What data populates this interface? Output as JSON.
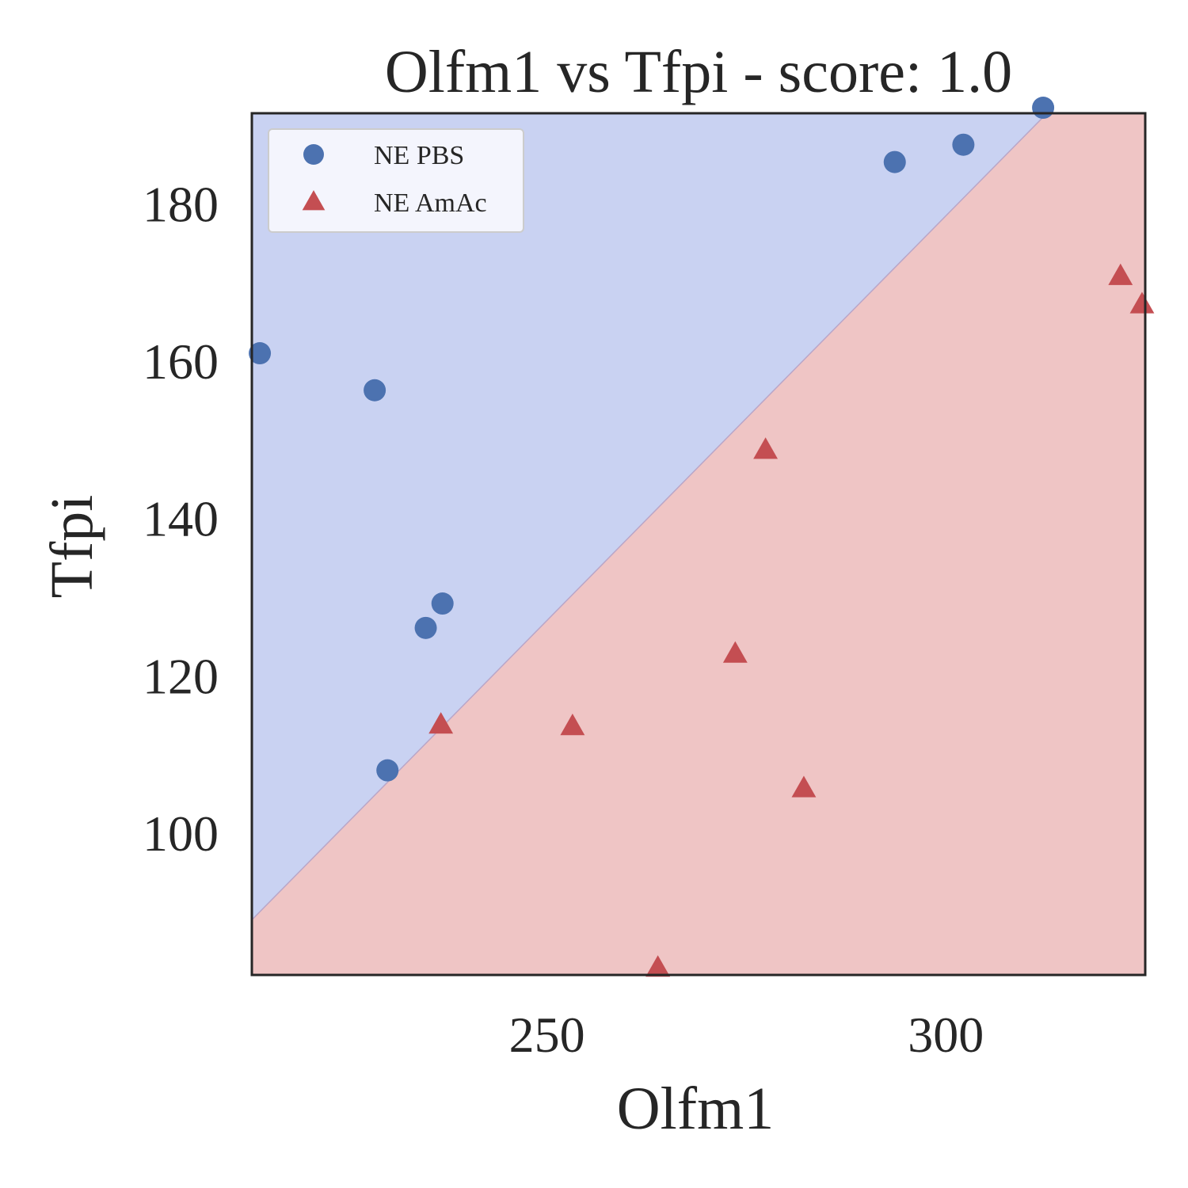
{
  "chart_data": {
    "type": "scatter",
    "title": "Olfm1 vs Tfpi - score: 1.0",
    "xlabel": "Olfm1",
    "ylabel": "Tfpi",
    "xlim": [
      213,
      325
    ],
    "ylim": [
      82,
      191.5
    ],
    "xticks": [
      250,
      300
    ],
    "yticks": [
      100,
      120,
      140,
      160,
      180
    ],
    "grid": false,
    "legend_position": "top-left",
    "decision_boundary": {
      "points": [
        [
          213,
          89
        ],
        [
          312,
          190.8
        ]
      ],
      "colors": {
        "upper_left": "#c9d2f2",
        "lower_right": "#efc5c5"
      }
    },
    "series": [
      {
        "name": "NE PBS",
        "marker": "circle",
        "color": "#4c72b0",
        "points": [
          [
            214,
            161
          ],
          [
            228.4,
            156.3
          ],
          [
            230,
            108
          ],
          [
            234.8,
            126.1
          ],
          [
            236.9,
            129.2
          ],
          [
            293.6,
            185.3
          ],
          [
            302.2,
            187.5
          ],
          [
            312.2,
            192.2
          ]
        ]
      },
      {
        "name": "NE AmAc",
        "marker": "triangle",
        "color": "#c44e52",
        "points": [
          [
            236.7,
            113.8
          ],
          [
            253.2,
            113.6
          ],
          [
            263.9,
            82.9
          ],
          [
            273.6,
            122.8
          ],
          [
            277.4,
            148.7
          ],
          [
            282.2,
            105.7
          ],
          [
            321.9,
            170.8
          ],
          [
            324.6,
            167.2
          ]
        ]
      }
    ]
  }
}
